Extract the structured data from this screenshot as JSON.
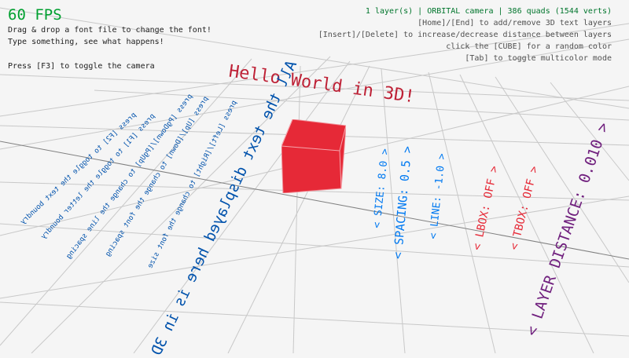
{
  "hud": {
    "fps": "60 FPS",
    "help_lines": [
      "Drag & drop a font file to change the font!",
      "Type something, see what happens!",
      "Press [F3] to toggle the camera"
    ],
    "status": "1 layer(s) | ORBITAL camera |  386 quads (1544 verts)",
    "controls": [
      "[Home]/[End] to add/remove 3D text layers",
      "[Insert]/[Delete] to increase/decrease distance between layers",
      "click the [CUBE] for a random color",
      "[Tab] to toggle multicolor mode"
    ]
  },
  "scene": {
    "title_text": "Hello World in 3D!",
    "main_text": "All the text displayed here is in 3D",
    "instructions": [
      "press [Left]/[Right] to change the font size",
      "press [Up]/[Down] to change the font spacing",
      "press [PgDown]/[PgUp] to change the line spacing",
      "press [F1] to toggle the letter boundry",
      "press [F2] to toggle the text boundry"
    ],
    "settings": {
      "size": "< SIZE: 8.0 >",
      "spacing": "< SPACING: 0.5 >",
      "line": "< LINE: -1.0 >",
      "lbox": "< LBOX: OFF >",
      "tbox": "< TBOX: OFF >",
      "layer_distance": "< LAYER DISTANCE: 0.010 >"
    }
  },
  "colors": {
    "fps": "#00a030",
    "status": "#00752c",
    "hello": "#be2136",
    "blue_text": "#0052ac",
    "settings_blue": "#0079f1",
    "settings_red": "#e62937",
    "settings_purple": "#70207e",
    "cube": "#e62937"
  }
}
